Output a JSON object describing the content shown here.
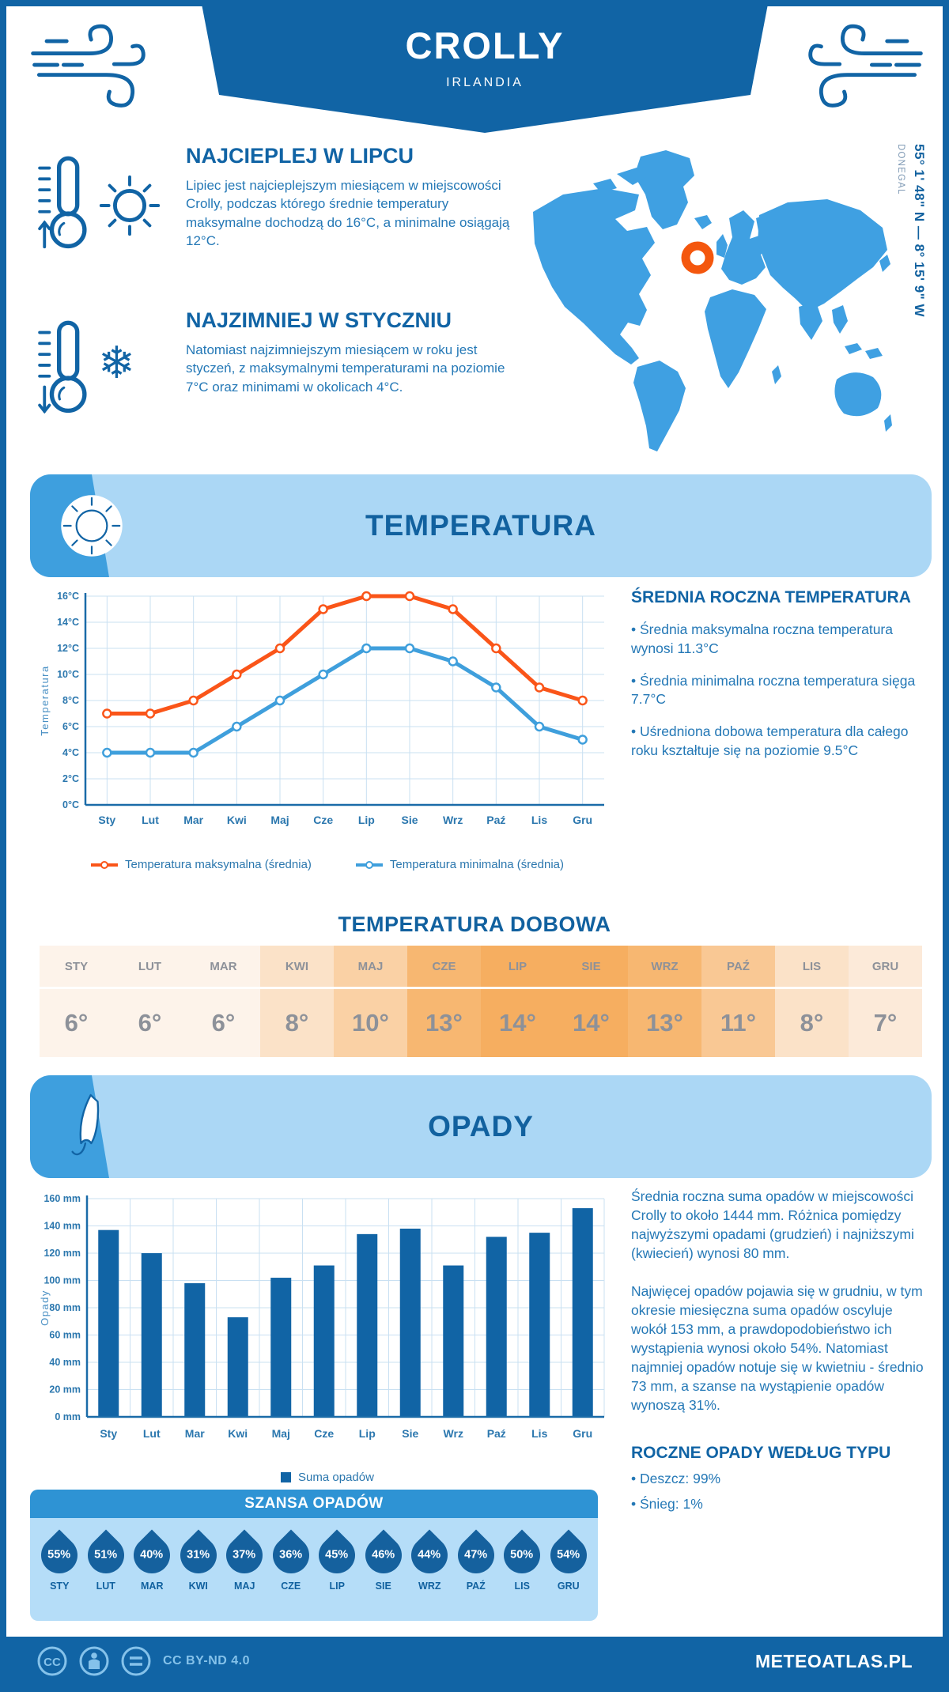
{
  "header": {
    "title": "CROLLY",
    "subtitle": "IRLANDIA"
  },
  "intro": {
    "warm_heading": "NAJCIEPLEJ W LIPCU",
    "warm_text": "Lipiec jest najcieplejszym miesiącem w miejscowości Crolly, podczas którego średnie temperatury maksymalne dochodzą do 16°C, a minimalne osiągają 12°C.",
    "cold_heading": "NAJZIMNIEJ W STYCZNIU",
    "cold_text": "Natomiast najzimniejszym miesiącem w roku jest styczeń, z maksymalnymi temperaturami na poziomie 7°C oraz minimami w okolicach 4°C."
  },
  "map": {
    "coordinates": "55° 1' 48\" N — 8° 15' 9\" W",
    "region": "DONEGAL"
  },
  "temperature_section": {
    "banner_title": "TEMPERATURA",
    "stats_heading": "ŚREDNIA ROCZNA TEMPERATURA",
    "stats": [
      "• Średnia maksymalna roczna temperatura wynosi 11.3°C",
      "• Średnia minimalna roczna temperatura sięga 7.7°C",
      "• Uśredniona dobowa temperatura dla całego roku kształtuje się na poziomie 9.5°C"
    ],
    "daily_title": "TEMPERATURA DOBOWA"
  },
  "precipitation_section": {
    "banner_title": "OPADY",
    "paragraphs": [
      "Średnia roczna suma opadów w miejscowości Crolly to około 1444 mm. Różnica pomiędzy najwyższymi opadami (grudzień) i najniższymi (kwiecień) wynosi 80 mm.",
      "Najwięcej opadów pojawia się w grudniu, w tym okresie miesięczna suma opadów oscyluje wokół 153 mm, a prawdopodobieństwo ich wystąpienia wynosi około 54%. Natomiast najmniej opadów notuje się w kwietniu - średnio 73 mm, a szanse na wystąpienie opadów wynoszą 31%."
    ],
    "type_heading": "ROCZNE OPADY WEDŁUG TYPU",
    "type_items": [
      "• Deszcz: 99%",
      "• Śnieg: 1%"
    ],
    "chance_title": "SZANSA OPADÓW"
  },
  "chart_data": [
    {
      "type": "line",
      "title": "Średnie temperatury miesięczne",
      "categories": [
        "Sty",
        "Lut",
        "Mar",
        "Kwi",
        "Maj",
        "Cze",
        "Lip",
        "Sie",
        "Wrz",
        "Paź",
        "Lis",
        "Gru"
      ],
      "series": [
        {
          "name": "Temperatura maksymalna (średnia)",
          "color": "#FA5519",
          "values": [
            7,
            7,
            8,
            10,
            12,
            15,
            16,
            16,
            15,
            12,
            9,
            8
          ]
        },
        {
          "name": "Temperatura minimalna (średnia)",
          "color": "#3F9FDC",
          "values": [
            4,
            4,
            4,
            6,
            8,
            10,
            12,
            12,
            11,
            9,
            6,
            5
          ]
        }
      ],
      "ylabel": "Temperatura",
      "ylim": [
        0,
        16
      ],
      "ytick_step": 2,
      "ytick_suffix": "°C",
      "grid": true,
      "legend_position": "bottom"
    },
    {
      "type": "bar",
      "title": "Suma opadów miesięczna",
      "categories": [
        "Sty",
        "Lut",
        "Mar",
        "Kwi",
        "Maj",
        "Cze",
        "Lip",
        "Sie",
        "Wrz",
        "Paź",
        "Lis",
        "Gru"
      ],
      "values": [
        137,
        120,
        98,
        73,
        102,
        111,
        134,
        138,
        111,
        132,
        135,
        153
      ],
      "legend": "Suma opadów",
      "bar_color": "#1164A5",
      "ylabel": "Opady",
      "ylim": [
        0,
        160
      ],
      "ytick_step": 20,
      "ytick_suffix": " mm",
      "grid": true,
      "legend_position": "bottom"
    },
    {
      "type": "table",
      "title": "TEMPERATURA DOBOWA",
      "categories": [
        "STY",
        "LUT",
        "MAR",
        "KWI",
        "MAJ",
        "CZE",
        "LIP",
        "SIE",
        "WRZ",
        "PAŹ",
        "LIS",
        "GRU"
      ],
      "values": [
        "6°",
        "6°",
        "6°",
        "8°",
        "10°",
        "13°",
        "14°",
        "14°",
        "13°",
        "11°",
        "8°",
        "7°"
      ]
    },
    {
      "type": "pictogram",
      "title": "SZANSA OPADÓW",
      "categories": [
        "STY",
        "LUT",
        "MAR",
        "KWI",
        "MAJ",
        "CZE",
        "LIP",
        "SIE",
        "WRZ",
        "PAŹ",
        "LIS",
        "GRU"
      ],
      "values": [
        "55%",
        "51%",
        "40%",
        "31%",
        "37%",
        "36%",
        "45%",
        "46%",
        "44%",
        "47%",
        "50%",
        "54%"
      ]
    }
  ],
  "colors": {
    "dark_blue": "#1164A5",
    "band_blue": "#ABD7F5",
    "panel_blue": "#B5DDF8",
    "chance_header_blue": "#2E93D4",
    "map_blue": "#3FA0E2",
    "marker_orange": "#F4570E",
    "max_line": "#FA5519",
    "min_line": "#3F9FDC",
    "grid": "#C9E0F2",
    "axis_text": "#2B77AE",
    "table_text": "#8D9199",
    "drop_blue": "#15619E",
    "table_warm_low": "#FDF3EA",
    "table_warm_high": "#F6AE60"
  },
  "footer": {
    "license": "CC BY-ND 4.0",
    "site": "METEOATLAS.PL"
  }
}
